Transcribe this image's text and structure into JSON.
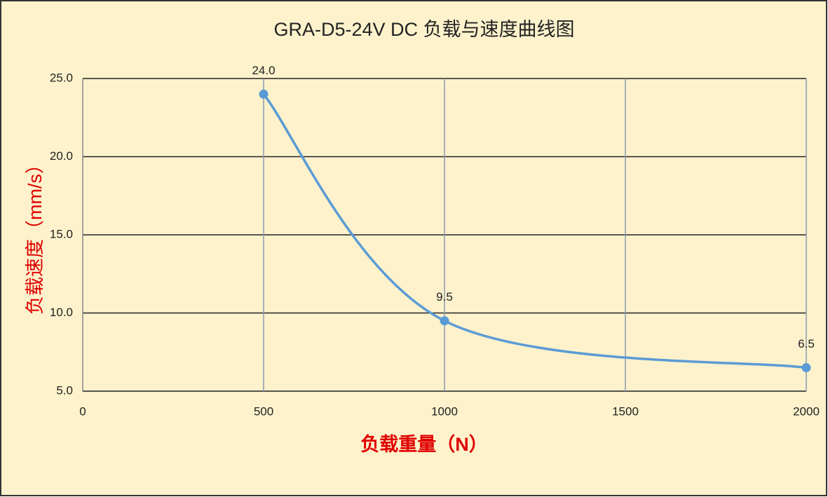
{
  "chart_data": {
    "type": "line",
    "title": "GRA-D5-24V DC 负载与速度曲线图",
    "x_label": "负载重量（N）",
    "y_label": "负载速度（mm/s）",
    "x": [
      500,
      1000,
      2000
    ],
    "series": [
      {
        "name": "负载速度",
        "color": "#5b9bd5",
        "values": [
          24.0,
          9.5,
          6.5
        ],
        "value_labels": [
          "24.0",
          "9.5",
          "6.5"
        ]
      }
    ],
    "xlim": [
      0,
      2000
    ],
    "xticks": [
      0,
      500,
      1000,
      1500,
      2000
    ],
    "ylim": [
      5,
      25
    ],
    "yticks": [
      {
        "value": 5,
        "label": "5.0"
      },
      {
        "value": 10,
        "label": "10.0"
      },
      {
        "value": 15,
        "label": "15.0"
      },
      {
        "value": 20,
        "label": "20.0"
      },
      {
        "value": 25,
        "label": "25.0"
      }
    ],
    "grid": true,
    "smooth": true
  }
}
